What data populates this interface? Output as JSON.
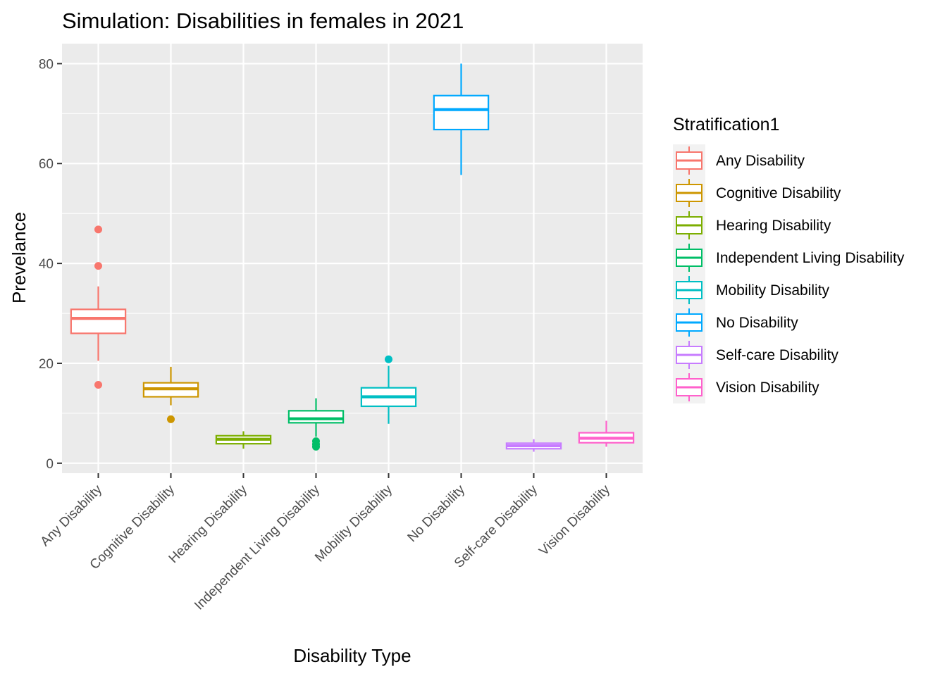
{
  "chart_data": {
    "type": "boxplot",
    "title": "Simulation: Disabilities in females in 2021",
    "xlabel": "Disability Type",
    "ylabel": "Prevelance",
    "ylim": [
      -2,
      84
    ],
    "yticks": [
      0,
      20,
      40,
      60,
      80
    ],
    "grid": true,
    "legend": {
      "title": "Stratification1",
      "placement": "right"
    },
    "categories": [
      "Any Disability",
      "Cognitive Disability",
      "Hearing Disability",
      "Independent Living Disability",
      "Mobility Disability",
      "No Disability",
      "Self-care Disability",
      "Vision Disability"
    ],
    "series": [
      {
        "name": "Any Disability",
        "color": "#F8766D",
        "min": 20.5,
        "q1": 26.0,
        "median": 29.0,
        "q3": 30.8,
        "max": 35.4,
        "outliers": [
          46.8,
          39.5,
          15.7
        ]
      },
      {
        "name": "Cognitive Disability",
        "color": "#CD9600",
        "min": 11.6,
        "q1": 13.3,
        "median": 14.9,
        "q3": 16.1,
        "max": 19.3,
        "outliers": [
          8.8
        ]
      },
      {
        "name": "Hearing Disability",
        "color": "#7CAE00",
        "min": 2.9,
        "q1": 3.9,
        "median": 4.8,
        "q3": 5.5,
        "max": 6.4,
        "outliers": []
      },
      {
        "name": "Independent Living Disability",
        "color": "#00BE67",
        "min": 5.3,
        "q1": 8.1,
        "median": 8.9,
        "q3": 10.5,
        "max": 13.0,
        "outliers": [
          4.4,
          3.8,
          3.3
        ]
      },
      {
        "name": "Mobility Disability",
        "color": "#00BFC4",
        "min": 7.9,
        "q1": 11.4,
        "median": 13.3,
        "q3": 15.1,
        "max": 19.5,
        "outliers": [
          20.8
        ]
      },
      {
        "name": "No Disability",
        "color": "#00A9FF",
        "min": 57.7,
        "q1": 66.8,
        "median": 70.8,
        "q3": 73.6,
        "max": 80.0,
        "outliers": []
      },
      {
        "name": "Self-care Disability",
        "color": "#C77CFF",
        "min": 2.3,
        "q1": 2.9,
        "median": 3.5,
        "q3": 4.0,
        "max": 4.8,
        "outliers": []
      },
      {
        "name": "Vision Disability",
        "color": "#FF61CC",
        "min": 3.3,
        "q1": 4.1,
        "median": 5.0,
        "q3": 6.1,
        "max": 8.5,
        "outliers": []
      }
    ]
  }
}
